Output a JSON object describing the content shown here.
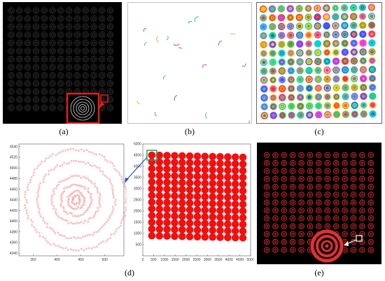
{
  "captions": {
    "a": "(a)",
    "b": "(b)",
    "c": "(c)",
    "d": "(d)",
    "e": "(e)"
  },
  "colors": {
    "background_dark": "#000000",
    "ring_gray": "#8a8a8a",
    "highlight_red": "#e0201a",
    "arrow_blue": "#2a4fd0",
    "marker_green": "#1fa35a",
    "ring_red": "#e03030",
    "dot_red": "#f01010"
  },
  "icons": {
    "zoom_arrow_a": "red-triangle-pointer",
    "zoom_arrow_d": "blue-arrow",
    "zoom_arrow_e": "white-arrow"
  },
  "panel_d_left": {
    "x_ticks": [
      "350",
      "400",
      "450",
      "500"
    ],
    "y_ticks": [
      "4540",
      "4520",
      "4500",
      "4480",
      "4460",
      "4440",
      "4420",
      "4400",
      "4380",
      "4360",
      "4340"
    ]
  },
  "panel_d_right": {
    "x_ticks": [
      "0",
      "500",
      "1000",
      "1500",
      "2000",
      "2500",
      "3000",
      "3500",
      "4000",
      "4500",
      "5000"
    ],
    "y_ticks": [
      "5000",
      "4500",
      "4000",
      "3500",
      "3000",
      "2500",
      "2000",
      "1500",
      "1000",
      "500"
    ]
  }
}
